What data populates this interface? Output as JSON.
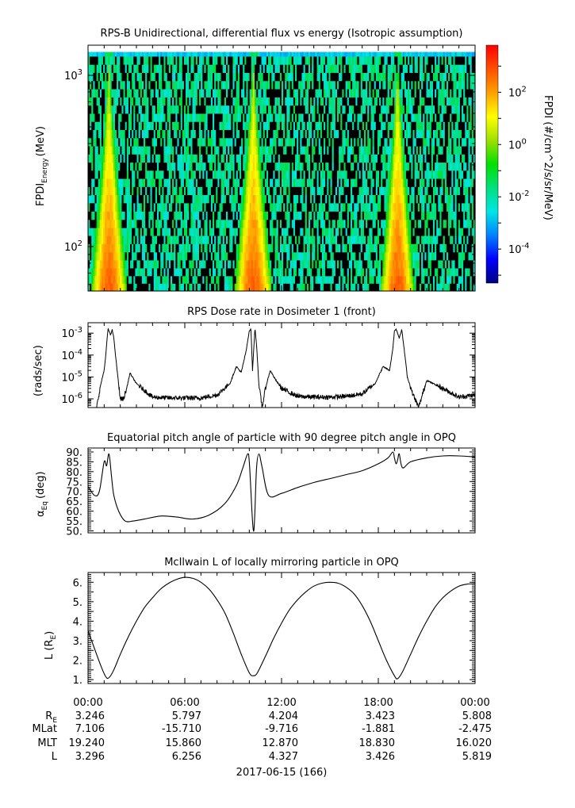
{
  "chart_data": [
    {
      "type": "heatmap",
      "title": "RPS-B  Unidirectional, differential flux vs energy (Isotropic assumption)",
      "ylabel": "FPDI",
      "ylabel_sub": "Energy",
      "ylabel_unit": "(MeV)",
      "yscale": "log",
      "ylim": [
        55,
        1500
      ],
      "yticks": [
        {
          "value": 100,
          "base": "10",
          "exp": "2"
        },
        {
          "value": 1000,
          "base": "10",
          "exp": "3"
        }
      ],
      "energy_bins": [
        58,
        64,
        71,
        79,
        88,
        98,
        110,
        122,
        136,
        152,
        170,
        190,
        212,
        236,
        264,
        294,
        328,
        366,
        408,
        456,
        508,
        567,
        633,
        706,
        788,
        880,
        982,
        1096,
        1223,
        1365
      ],
      "colorbar": {
        "label": "FPDI (#/cm^2/s/sr/MeV)",
        "scale": "log",
        "range_log10": [
          -5.3,
          3.8
        ],
        "ticks": [
          {
            "base": "10",
            "exp": "-4",
            "log": -4
          },
          {
            "base": "10",
            "exp": "-2",
            "log": -2
          },
          {
            "base": "10",
            "exp": "0",
            "log": 0
          },
          {
            "base": "10",
            "exp": "2",
            "log": 2
          }
        ],
        "colors": [
          "#000080",
          "#0000ff",
          "#0080ff",
          "#00e5e5",
          "#00e080",
          "#00e000",
          "#a0e000",
          "#ffff00",
          "#ffa000",
          "#ff5000",
          "#ff0000"
        ]
      },
      "belt_crossings_hours": [
        1.3,
        10.25,
        19.2
      ],
      "belt_width_hours": [
        1.05,
        1.1,
        1.0
      ]
    },
    {
      "type": "line",
      "title": "RPS  Dose rate in Dosimeter 1 (front)",
      "ylabel": "(rads/sec)",
      "yscale": "log",
      "ylim": [
        4e-07,
        0.003
      ],
      "yticks": [
        {
          "value": 1e-06,
          "base": "10",
          "exp": "-6"
        },
        {
          "value": 1e-05,
          "base": "10",
          "exp": "-5"
        },
        {
          "value": 0.0001,
          "base": "10",
          "exp": "-4"
        },
        {
          "value": 0.001,
          "base": "10",
          "exp": "-3"
        }
      ],
      "x_hours": [
        0,
        0.5,
        0.8,
        1.0,
        1.1,
        1.2,
        1.25,
        1.4,
        1.5,
        1.6,
        1.7,
        2.0,
        2.2,
        2.4,
        2.6,
        3.0,
        4.0,
        5.0,
        6.0,
        7.0,
        8.0,
        8.8,
        9.2,
        9.5,
        9.8,
        10.0,
        10.1,
        10.2,
        10.35,
        10.45,
        10.6,
        10.8,
        11.0,
        11.3,
        11.6,
        12.0,
        13.0,
        14.0,
        15.0,
        16.0,
        17.0,
        17.8,
        18.3,
        18.7,
        18.9,
        19.0,
        19.1,
        19.3,
        19.45,
        19.6,
        19.8,
        20.1,
        20.5,
        21.0,
        22.0,
        23.0,
        24.0
      ],
      "y": [
        3e-07,
        3e-07,
        5e-06,
        2e-05,
        0.0001,
        0.0008,
        0.0016,
        0.0008,
        0.0015,
        0.0006,
        0.0001,
        1e-06,
        1e-06,
        3e-06,
        1.5e-05,
        5e-06,
        1.2e-06,
        1.1e-06,
        1.1e-06,
        1.1e-06,
        1.5e-06,
        5e-06,
        3e-05,
        1.6e-05,
        0.00015,
        0.0013,
        0.0015,
        2e-05,
        0.0016,
        0.0003,
        4e-06,
        4e-07,
        3e-06,
        2e-05,
        8e-06,
        3e-06,
        1.3e-06,
        1.2e-06,
        1.2e-06,
        1.3e-06,
        1.7e-06,
        5e-06,
        3e-05,
        2e-05,
        0.0002,
        0.0012,
        0.0016,
        0.0006,
        0.0015,
        0.0002,
        1e-05,
        2e-06,
        4e-07,
        7e-06,
        3e-06,
        1.2e-06,
        1.5e-06
      ]
    },
    {
      "type": "line",
      "title": "Equatorial pitch angle of particle with 90 degree pitch angle in OPQ",
      "ylabel": "α",
      "ylabel_sub": "Eq",
      "ylabel_unit": "(deg)",
      "ylim": [
        49,
        92
      ],
      "yticks": [
        50,
        55,
        60,
        65,
        70,
        75,
        80,
        85,
        90
      ],
      "ytick_labels": [
        "50.",
        "55.",
        "60.",
        "65.",
        "70.",
        "75.",
        "80.",
        "85.",
        "90."
      ],
      "x_hours": [
        0,
        0.4,
        0.7,
        1.0,
        1.15,
        1.3,
        1.45,
        1.6,
        1.9,
        2.3,
        2.8,
        3.5,
        4.5,
        5.5,
        6.5,
        7.5,
        8.5,
        9.2,
        9.6,
        9.9,
        10.0,
        10.1,
        10.2,
        10.28,
        10.35,
        10.45,
        10.6,
        10.8,
        11.2,
        12.0,
        13.0,
        14.0,
        15.0,
        16.0,
        17.0,
        18.0,
        18.6,
        18.9,
        19.0,
        19.1,
        19.2,
        19.3,
        19.5,
        20.0,
        21.0,
        22.0,
        23.0,
        24.0
      ],
      "y": [
        72.5,
        68,
        70,
        85,
        83,
        89,
        78,
        68,
        60,
        55,
        55,
        56,
        57.5,
        57,
        56,
        58,
        64,
        73,
        82,
        89,
        85,
        70,
        55,
        50,
        60,
        82,
        89,
        82,
        68,
        69,
        72,
        74.5,
        76.5,
        78.5,
        80.5,
        84,
        87,
        90,
        87,
        84,
        86,
        89,
        82,
        85,
        87,
        88,
        88,
        87.5
      ]
    },
    {
      "type": "line",
      "title": "McIlwain L of locally mirroring particle in OPQ",
      "ylabel": "L (R",
      "ylabel_sub": "E",
      "ylabel_end": ")",
      "ylim": [
        0.8,
        6.5
      ],
      "yticks": [
        1,
        1.5,
        2,
        2.5,
        3,
        3.5,
        4,
        4.5,
        5,
        5.5,
        6
      ],
      "ytick_labels": [
        "1.",
        "",
        "2.",
        "",
        "3.",
        "",
        "4.",
        "",
        "5.",
        "",
        "6."
      ],
      "x_hours": [
        0,
        0.4,
        0.8,
        1.1,
        1.3,
        1.6,
        2.0,
        2.5,
        3.0,
        3.5,
        4.0,
        4.5,
        5.0,
        5.5,
        6.0,
        6.5,
        7.0,
        7.5,
        8.0,
        8.5,
        9.0,
        9.5,
        10.0,
        10.25,
        10.5,
        11.0,
        11.5,
        12.0,
        12.5,
        13.0,
        13.5,
        14.0,
        14.5,
        15.0,
        15.5,
        16.0,
        16.5,
        17.0,
        17.5,
        18.0,
        18.5,
        19.0,
        19.2,
        19.5,
        20.0,
        20.5,
        21.0,
        21.5,
        22.0,
        22.5,
        23.0,
        23.5,
        24.0
      ],
      "y": [
        3.5,
        2.6,
        1.7,
        1.15,
        1.1,
        1.5,
        2.3,
        3.2,
        4.0,
        4.7,
        5.2,
        5.65,
        5.95,
        6.15,
        6.25,
        6.2,
        6.0,
        5.65,
        5.1,
        4.4,
        3.4,
        2.3,
        1.35,
        1.2,
        1.35,
        2.2,
        3.1,
        3.9,
        4.6,
        5.1,
        5.5,
        5.8,
        5.95,
        6.0,
        5.95,
        5.75,
        5.4,
        4.8,
        4.0,
        3.0,
        2.0,
        1.2,
        1.05,
        1.4,
        2.3,
        3.2,
        4.0,
        4.7,
        5.2,
        5.55,
        5.8,
        5.9,
        5.92
      ]
    }
  ],
  "axis": {
    "xlim_hours": [
      0,
      24
    ],
    "x_tick_labels": [
      "00:00",
      "06:00",
      "12:00",
      "18:00",
      "00:00"
    ],
    "row_labels": [
      "R",
      "MLat",
      "MLT",
      "L"
    ],
    "row_label_sub": "E",
    "rows": [
      [
        "3.246",
        "5.797",
        "4.204",
        "3.423",
        "5.808"
      ],
      [
        "7.106",
        "-15.710",
        "-9.716",
        "-1.881",
        "-2.475"
      ],
      [
        "19.240",
        "15.860",
        "12.870",
        "18.830",
        "16.020"
      ],
      [
        "3.296",
        "6.256",
        "4.327",
        "3.426",
        "5.819"
      ]
    ],
    "date_label": "2017-06-15 (166)"
  }
}
